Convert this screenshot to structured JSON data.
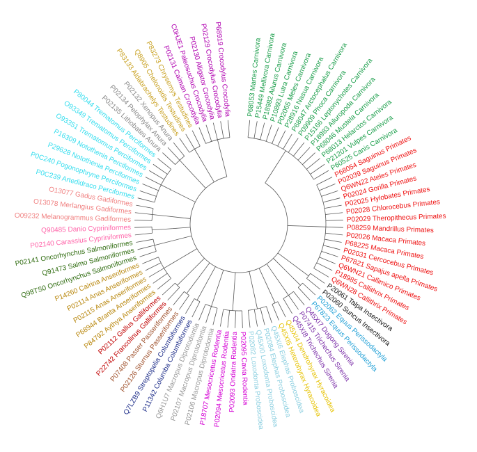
{
  "leaves": [
    {
      "label": "P68053 Martes Carnivora",
      "color": "#1a9e4a"
    },
    {
      "label": "P15449 Mellivora Carnivora",
      "color": "#1a9e4a"
    },
    {
      "label": "P18982 Ailurus Carnivora",
      "color": "#1a9e4a"
    },
    {
      "label": "P10893 Lutra Carnivora",
      "color": "#1a9e4a"
    },
    {
      "label": "P02065 Meles Carnivora",
      "color": "#1a9e4a"
    },
    {
      "label": "P28916 Nasua Carnivora",
      "color": "#1a9e4a"
    },
    {
      "label": "P68047 Arctocephalus Carnivora",
      "color": "#1a9e4a"
    },
    {
      "label": "P09909 Phoca Carnivora",
      "color": "#1a9e4a"
    },
    {
      "label": "P15166 Leptonychotes Carnivora",
      "color": "#1a9e4a"
    },
    {
      "label": "P18983 Ailuropoda Carnivora",
      "color": "#1a9e4a"
    },
    {
      "label": "P68046 Mustela Carnivora",
      "color": "#1a9e4a"
    },
    {
      "label": "P68013 Helarctos Carnivora",
      "color": "#1a9e4a"
    },
    {
      "label": "P21201 Vulpes Carnivora",
      "color": "#1a9e4a"
    },
    {
      "label": "P60525 Canis Carnivora",
      "color": "#1a9e4a"
    },
    {
      "label": "P68054 Saguinus Primates",
      "color": "#ee1111"
    },
    {
      "label": "P02039 Saguinus Primates",
      "color": "#ee1111"
    },
    {
      "label": "Q6WN22 Ateles Primates",
      "color": "#ee1111"
    },
    {
      "label": "P02024 Gorilla Primates",
      "color": "#ee1111"
    },
    {
      "label": "P02025 Hylobates Primates",
      "color": "#ee1111"
    },
    {
      "label": "P02028 Chlorocebus Primates",
      "color": "#ee1111"
    },
    {
      "label": "P02029 Theropithecus Primates",
      "color": "#ee1111"
    },
    {
      "label": "P08259 Mandrillus Primates",
      "color": "#ee1111"
    },
    {
      "label": "P02026 Macaca Primates",
      "color": "#ee1111"
    },
    {
      "label": "P68225 Macaca Primates",
      "color": "#ee1111"
    },
    {
      "label": "P02031 Cercocebus Primates",
      "color": "#ee1111"
    },
    {
      "label": "P67821 Sapajus apella Primates",
      "color": "#ee1111"
    },
    {
      "label": "Q6WN21 Callimico Primates",
      "color": "#ee1111"
    },
    {
      "label": "P18985 Callithrix Primates",
      "color": "#ee1111"
    },
    {
      "label": "Q6WN28 Callithrix Primates",
      "color": "#ee1111"
    },
    {
      "label": "P20061 Talpa Insectivora",
      "color": "#111111"
    },
    {
      "label": "P02060 Suncus Insectivora",
      "color": "#111111"
    },
    {
      "label": "P02062 Equus Perissodactyla",
      "color": "#1e9fd6"
    },
    {
      "label": "P67823 Equus Perissodactyla",
      "color": "#1e9fd6"
    },
    {
      "label": "Q45XI7 Dugong Sirenia",
      "color": "#7b2fa8"
    },
    {
      "label": "P07415 Trichechus Sirenia",
      "color": "#7b2fa8"
    },
    {
      "label": "Q45XI8 Trichechus Sirenia",
      "color": "#7b2fa8"
    },
    {
      "label": "Q45XI4 Dendrohyrax Hyracoidea",
      "color": "#e6c200"
    },
    {
      "label": "Q45XI5 Heterohyrax Hyracoidea",
      "color": "#e6c200"
    },
    {
      "label": "Q45XI6 Elephas Proboscidea",
      "color": "#8ccfe0"
    },
    {
      "label": "P02084 Elephas Proboscidea",
      "color": "#8ccfe0"
    },
    {
      "label": "Q45XI0 Loxodonta Proboscidea",
      "color": "#8ccfe0"
    },
    {
      "label": "P02082 Loxodonta Proboscidea",
      "color": "#8ccfe0"
    },
    {
      "label": "P02095 Cavia Rodentia",
      "color": "#d400d4"
    },
    {
      "label": "P02093 Ondatra Rodentia",
      "color": "#d400d4"
    },
    {
      "label": "P02094 Mesocricetus Rodentia",
      "color": "#d400d4"
    },
    {
      "label": "P18707 Mesocricetus Rodentia",
      "color": "#d400d4"
    },
    {
      "label": "P02106 Macropus Diprotodontia",
      "color": "#999999"
    },
    {
      "label": "P02107 Macropus Diprotodontia",
      "color": "#999999"
    },
    {
      "label": "Q6H1U7 Macropus Diprotodontia",
      "color": "#999999"
    },
    {
      "label": "P11342 Columba Columbiformes",
      "color": "#1f2f8a"
    },
    {
      "label": "Q7LZB9 Streptopelia Columbiformes",
      "color": "#1f2f8a"
    },
    {
      "label": "P02126 Sturnus Passeriformes",
      "color": "#a0522d"
    },
    {
      "label": "P07408 Passer Passeriformes",
      "color": "#a0522d"
    },
    {
      "label": "P22742 Francolinus Galliformes",
      "color": "#c00000"
    },
    {
      "label": "P02112 Gallus Galliformes",
      "color": "#c00000"
    },
    {
      "label": "P84792 Aythya Anseriformes",
      "color": "#b8860b"
    },
    {
      "label": "P68944 Branta Anseriformes",
      "color": "#b8860b"
    },
    {
      "label": "P02115 Anas Anseriformes",
      "color": "#b8860b"
    },
    {
      "label": "P02114 Anas Anseriformes",
      "color": "#b8860b"
    },
    {
      "label": "P14260 Cairina Anseriformes",
      "color": "#b8860b"
    },
    {
      "label": "Q98TS0 Oncorhynchus Salmoniformes",
      "color": "#2e6b0e"
    },
    {
      "label": "Q91473 Salmo Salmoniformes",
      "color": "#2e6b0e"
    },
    {
      "label": "P02141 Oncorhynchus Salmoniformes",
      "color": "#2e6b0e"
    },
    {
      "label": "P02140 Carassius Cypriniformes",
      "color": "#ff66aa"
    },
    {
      "label": "Q90485 Danio Cypriniformes",
      "color": "#ff66aa"
    },
    {
      "label": "O09232 Melanogrammus Gadiformes",
      "color": "#f08080"
    },
    {
      "label": "O13078 Merlangius Gadiformes",
      "color": "#f08080"
    },
    {
      "label": "O13077 Gadus Gadiformes",
      "color": "#f08080"
    },
    {
      "label": "P0C239 Artedidraco Perciformes",
      "color": "#33ddee"
    },
    {
      "label": "P0C240 Pogonophryne Perciformes",
      "color": "#33ddee"
    },
    {
      "label": "P29628 Notothenia Perciformes",
      "color": "#33ddee"
    },
    {
      "label": "P16309 Notothenia Perciformes",
      "color": "#33ddee"
    },
    {
      "label": "O93351 Trematomus Perciformes",
      "color": "#33ddee"
    },
    {
      "label": "O93349 Trematomus Perciformes",
      "color": "#33ddee"
    },
    {
      "label": "P80044 Trematomus Perciformes",
      "color": "#33ddee"
    },
    {
      "label": "P02135 Lithobates Anura",
      "color": "#888888"
    },
    {
      "label": "P02134 Pelophylax Anura",
      "color": "#888888"
    },
    {
      "label": "P02132 Xenopus Anura",
      "color": "#888888"
    },
    {
      "label": "P83133 Aldabrachelys Testudines",
      "color": "#c8a020"
    },
    {
      "label": "Q8905 Chelonoidis Testudines",
      "color": "#c8a020"
    },
    {
      "label": "P83273 Chrysemys Testudines",
      "color": "#c8a020"
    },
    {
      "label": "P02131 Caiman Crocodylia",
      "color": "#b000b0"
    },
    {
      "label": "C0HJE1 Paleosuchus Crocodylia",
      "color": "#b000b0"
    },
    {
      "label": "P02130 Alligator Crocodylia",
      "color": "#b000b0"
    },
    {
      "label": "P02129 Crocodylus Crocodylia",
      "color": "#b000b0"
    },
    {
      "label": "P68919 Crocodylus Crocodylia",
      "color": "#b000b0"
    }
  ]
}
